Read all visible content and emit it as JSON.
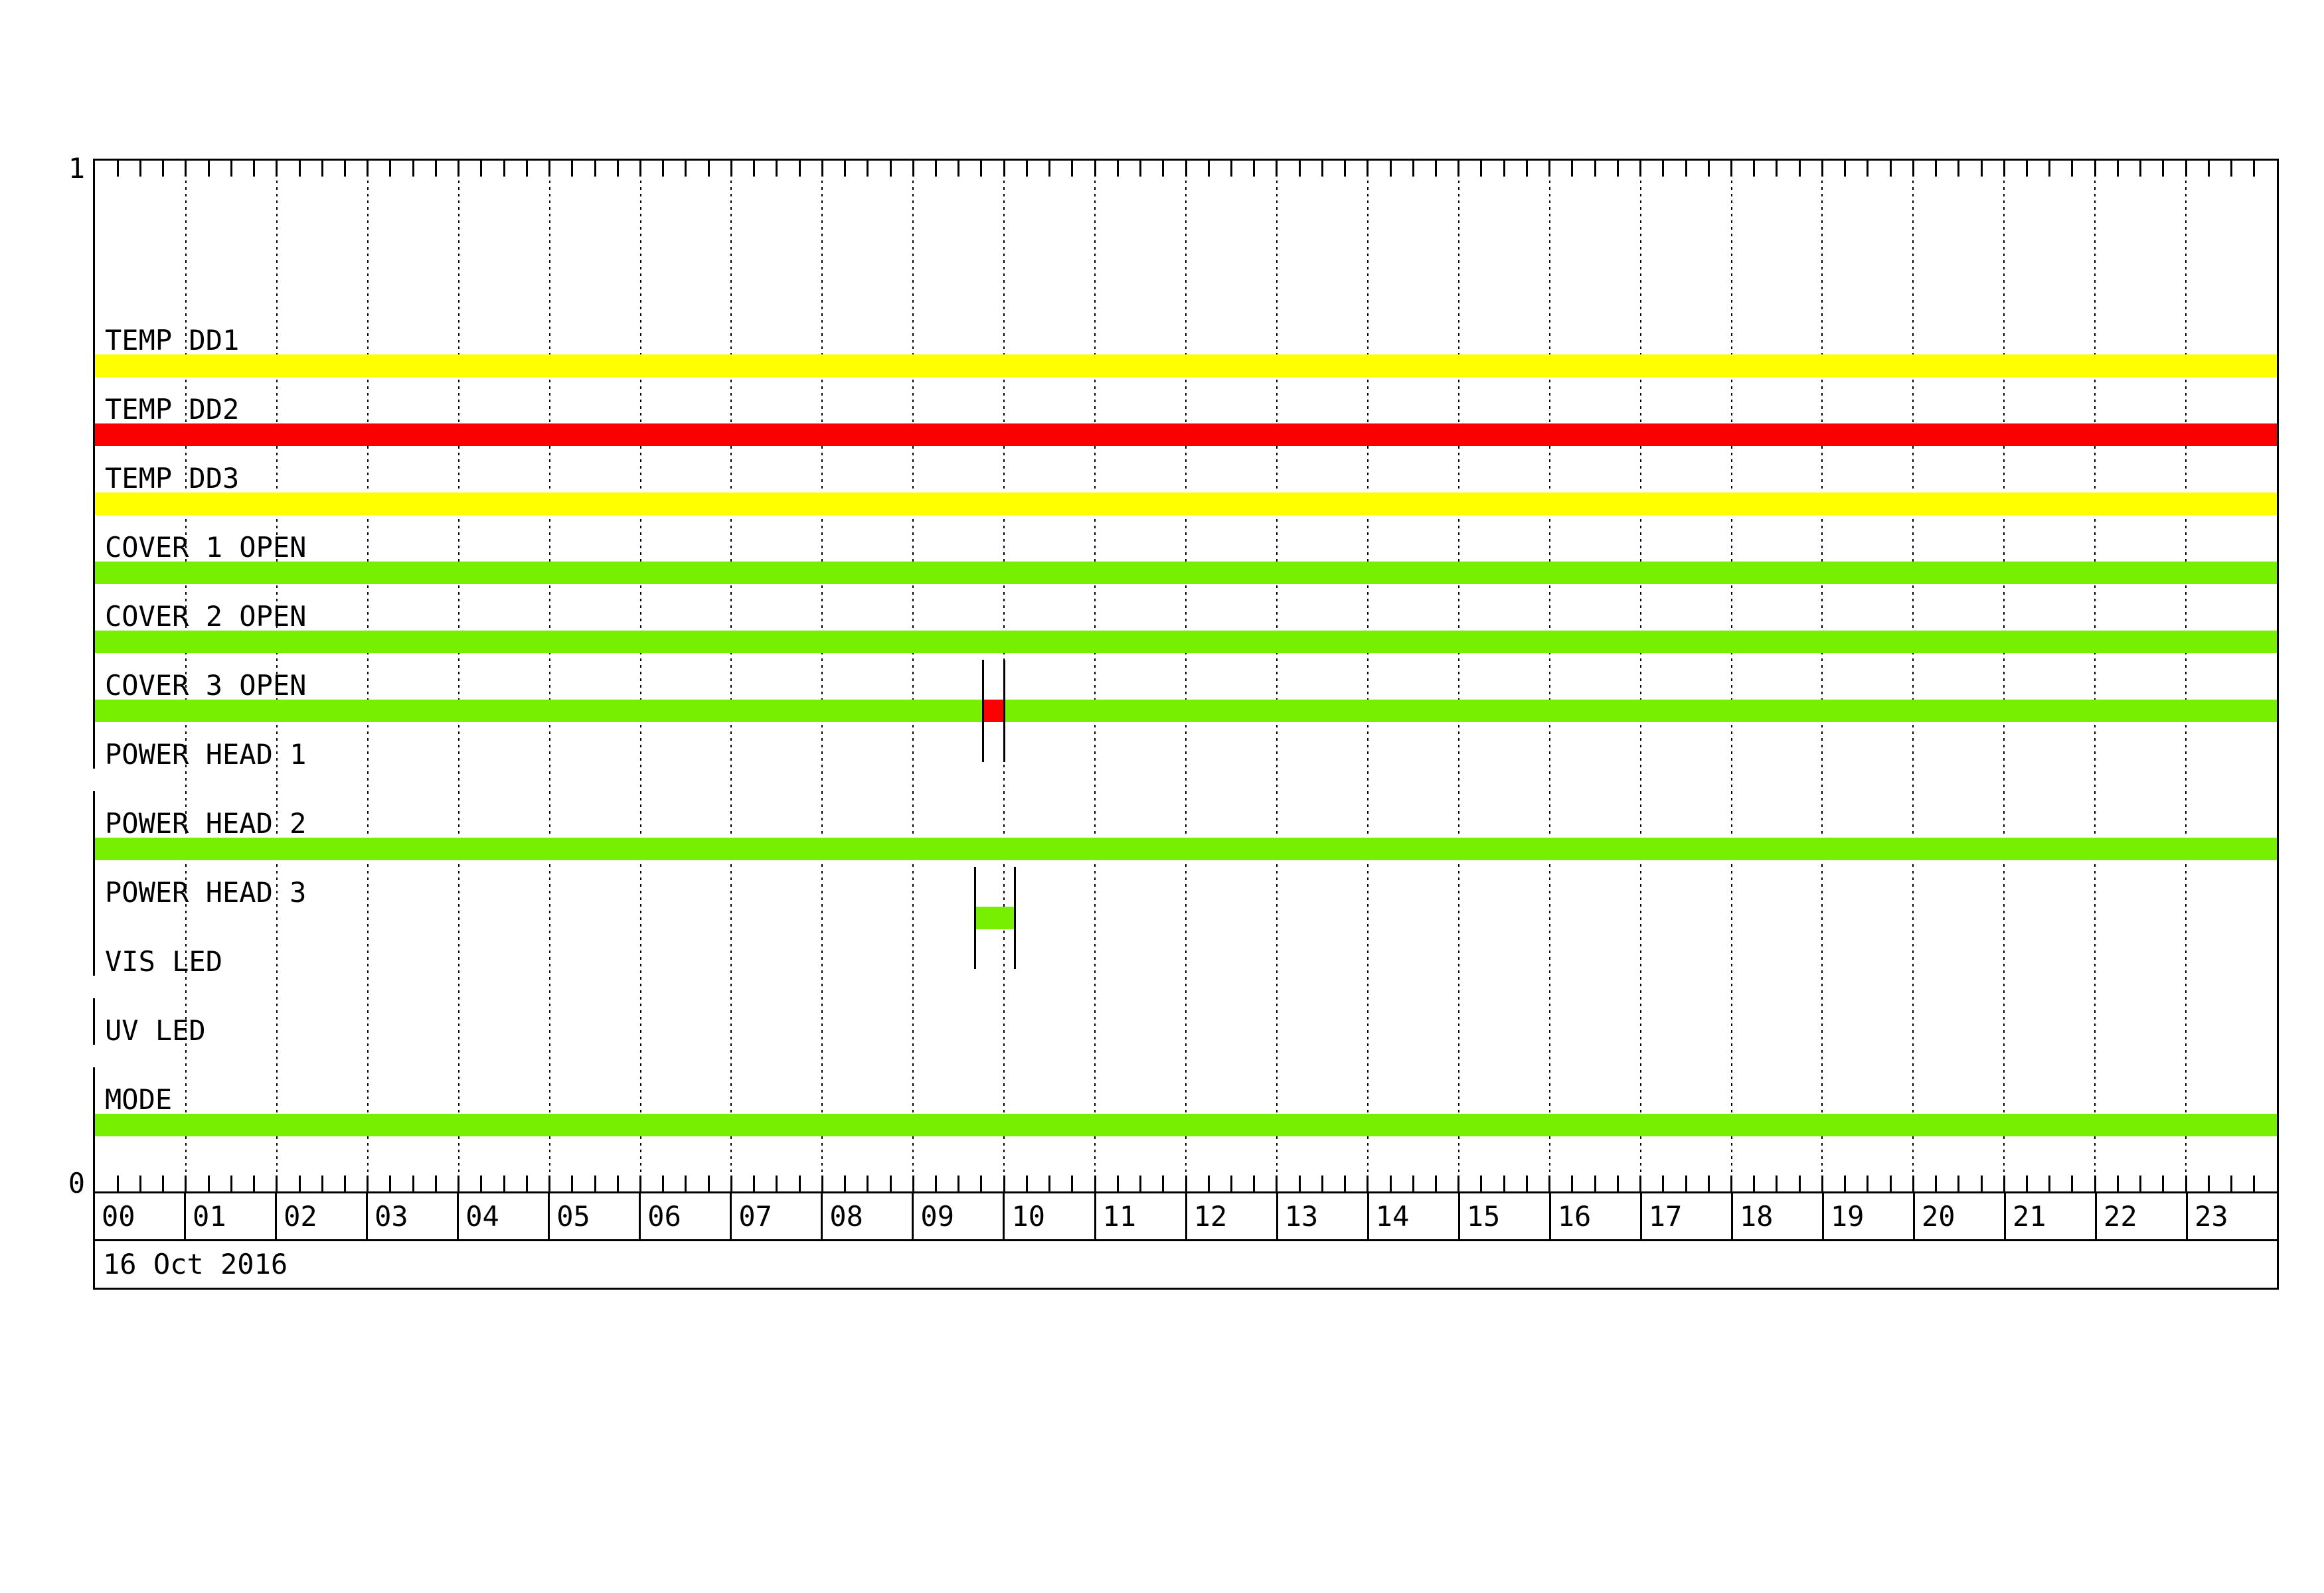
{
  "chart_data": {
    "type": "bar",
    "subtype": "binary-status-timeline",
    "title": "",
    "x_axis": {
      "unit": "hours",
      "range": [
        0,
        24
      ],
      "hour_labels": [
        "00",
        "01",
        "02",
        "03",
        "04",
        "05",
        "06",
        "07",
        "08",
        "09",
        "10",
        "11",
        "12",
        "13",
        "14",
        "15",
        "16",
        "17",
        "18",
        "19",
        "20",
        "21",
        "22",
        "23"
      ],
      "minor_tick_minutes": 15,
      "hour_gridlines": "dotted",
      "date": "16 Oct 2016"
    },
    "y_axis": {
      "top_label": "1",
      "bottom_label": "0"
    },
    "legend": null,
    "colors": {
      "yellow": "#FFFF00",
      "red": "#FA0000",
      "green": "#76F000",
      "line": "#000000",
      "background": "#FFFFFF"
    },
    "rows": [
      {
        "id": "temp-dd1",
        "label": "TEMP DD1",
        "events": [
          {
            "start": "00:00",
            "end": "24:00",
            "color": "yellow"
          }
        ]
      },
      {
        "id": "temp-dd2",
        "label": "TEMP DD2",
        "events": [
          {
            "start": "00:00",
            "end": "24:00",
            "color": "red"
          }
        ]
      },
      {
        "id": "temp-dd3",
        "label": "TEMP DD3",
        "events": [
          {
            "start": "00:00",
            "end": "24:00",
            "color": "yellow"
          }
        ]
      },
      {
        "id": "cover-1-open",
        "label": "COVER 1 OPEN",
        "events": [
          {
            "start": "00:00",
            "end": "24:00",
            "color": "green"
          }
        ]
      },
      {
        "id": "cover-2-open",
        "label": "COVER 2 OPEN",
        "events": [
          {
            "start": "00:00",
            "end": "24:00",
            "color": "green"
          }
        ]
      },
      {
        "id": "cover-3-open",
        "label": "COVER 3 OPEN",
        "events": [
          {
            "start": "00:00",
            "end": "24:00",
            "color": "green"
          },
          {
            "start": "09:46",
            "end": "10:00",
            "color": "red",
            "markers": true
          }
        ]
      },
      {
        "id": "power-head-1",
        "label": "POWER HEAD 1",
        "events": []
      },
      {
        "id": "power-head-2",
        "label": "POWER HEAD 2",
        "events": [
          {
            "start": "00:00",
            "end": "24:00",
            "color": "green"
          }
        ]
      },
      {
        "id": "power-head-3",
        "label": "POWER HEAD 3",
        "events": [
          {
            "start": "09:41",
            "end": "10:07",
            "color": "green",
            "markers": true
          }
        ]
      },
      {
        "id": "vis-led",
        "label": "VIS LED",
        "events": []
      },
      {
        "id": "uv-led",
        "label": "UV LED",
        "events": []
      },
      {
        "id": "mode",
        "label": "MODE",
        "events": [
          {
            "start": "00:00",
            "end": "24:00",
            "color": "green"
          }
        ]
      }
    ]
  }
}
